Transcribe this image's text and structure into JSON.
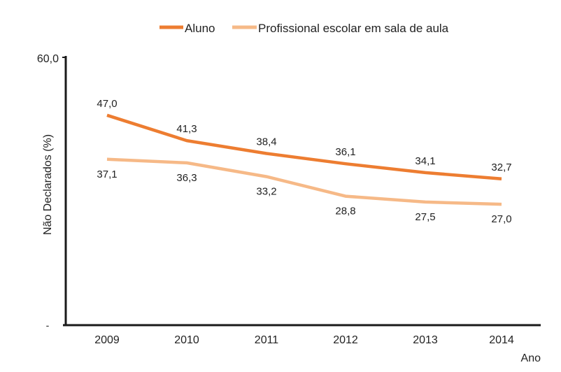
{
  "chart_data": {
    "type": "line",
    "title": "",
    "xlabel": "Ano",
    "ylabel": "Não Declarados (%)",
    "ylim": [
      0,
      60
    ],
    "y_tick_labels": [
      "-",
      "60,0"
    ],
    "categories": [
      "2009",
      "2010",
      "2011",
      "2012",
      "2013",
      "2014"
    ],
    "legend_position": "top",
    "grid": false,
    "series": [
      {
        "name": "Aluno",
        "color": "#ED7D31",
        "values": [
          47.0,
          41.3,
          38.4,
          36.1,
          34.1,
          32.7
        ],
        "labels": [
          "47,0",
          "41,3",
          "38,4",
          "36,1",
          "34,1",
          "32,7"
        ],
        "label_position": "above"
      },
      {
        "name": "Profissional escolar em sala de aula",
        "color": "#F6B987",
        "values": [
          37.1,
          36.3,
          33.2,
          28.8,
          27.5,
          27.0
        ],
        "labels": [
          "37,1",
          "36,3",
          "33,2",
          "28,8",
          "27,5",
          "27,0"
        ],
        "label_position": "below"
      }
    ]
  }
}
